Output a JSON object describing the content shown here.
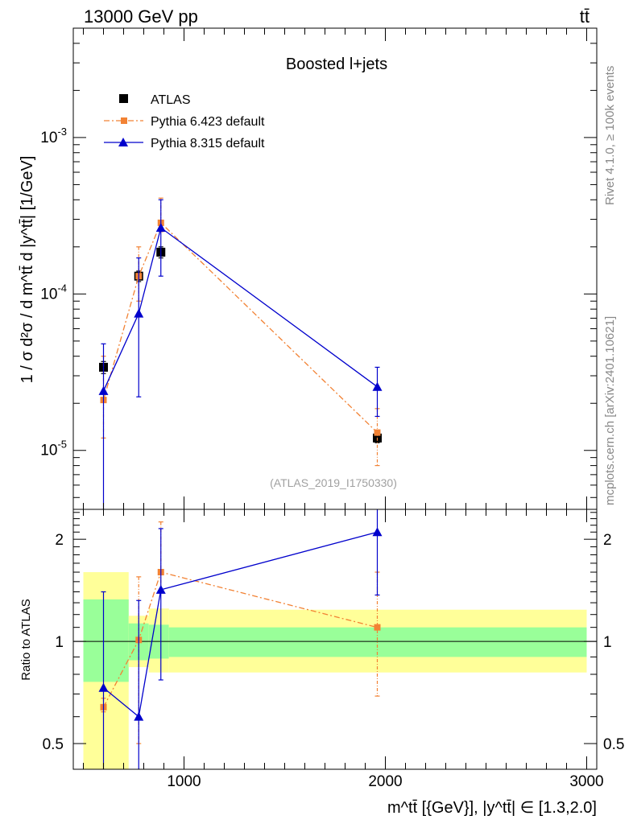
{
  "header": {
    "energy_label": "13000 GeV pp",
    "process_label": "tt̄"
  },
  "side_text": {
    "rivet": "Rivet 4.1.0, ≥ 100k events",
    "mcplots": "mcplots.cern.ch [arXiv:2401.10621]"
  },
  "colors": {
    "atlas": "#000000",
    "pythia6": "#f28234",
    "pythia8": "#0000cc",
    "band_inner": "#99ff99",
    "band_outer": "#ffff99",
    "reference_gray": "#a0a0a0"
  },
  "chart_data": [
    {
      "type": "scatter",
      "panel": "main",
      "title": "Boosted l+jets",
      "ylabel": "1 / σ d²σ / d m^tt̄ d |y^tt̄| [1/GeV]",
      "yscale": "log",
      "xlim": [
        450,
        3050
      ],
      "ylim": [
        4.2e-06,
        0.005
      ],
      "y_ticks": [
        "10^-5",
        "10^-4",
        "10^-3"
      ],
      "watermark": "(ATLAS_2019_I1750330)",
      "legend": {
        "position": "top-left",
        "entries": [
          "ATLAS",
          "Pythia 6.423 default",
          "Pythia 8.315 default"
        ]
      },
      "series": [
        {
          "name": "ATLAS",
          "marker": "square",
          "x": [
            600,
            775,
            885,
            1960
          ],
          "y": [
            3.4e-05,
            0.00013,
            0.000185,
            1.2e-05
          ],
          "yerr_low": [
            3.1e-05,
            0.00012,
            0.00017,
            1.12e-05
          ],
          "yerr_high": [
            3.7e-05,
            0.00014,
            0.0002,
            1.28e-05
          ]
        },
        {
          "name": "Pythia 6.423 default",
          "marker": "square-small",
          "line": "dashdot",
          "x": [
            600,
            775,
            885,
            1960
          ],
          "y": [
            2.1e-05,
            0.00013,
            0.000285,
            1.3e-05
          ],
          "yerr_low": [
            1.2e-05,
            9e-05,
            0.00025,
            8e-06
          ],
          "yerr_high": [
            4e-05,
            0.0002,
            0.00041,
            1.85e-05
          ]
        },
        {
          "name": "Pythia 8.315 default",
          "marker": "triangle",
          "line": "solid",
          "x": [
            600,
            775,
            885,
            1960
          ],
          "y": [
            2.4e-05,
            7.5e-05,
            0.000265,
            2.55e-05
          ],
          "yerr_low": [
            1e-06,
            2.2e-05,
            0.00013,
            1.65e-05
          ],
          "yerr_high": [
            4.8e-05,
            0.00017,
            0.0004,
            3.4e-05
          ]
        }
      ]
    },
    {
      "type": "scatter",
      "panel": "ratio",
      "ylabel": "Ratio to ATLAS",
      "yscale": "log",
      "xlim": [
        450,
        3050
      ],
      "ylim": [
        0.42,
        2.45
      ],
      "y_tick_labels": [
        "0.5",
        "1",
        "2"
      ],
      "y_tick_values": [
        0.5,
        1,
        2
      ],
      "x_tick_labels": [
        "1000",
        "2000",
        "3000"
      ],
      "x_tick_values": [
        1000,
        2000,
        3000
      ],
      "xlabel": "m^tt̄ [{GeV}], |y^tt̄| ∈ [1.3,2.0]",
      "bands": [
        {
          "x_low": 500,
          "x_high": 725,
          "inner": [
            0.76,
            1.33
          ],
          "outer": [
            0.41,
            1.6
          ]
        },
        {
          "x_low": 725,
          "x_high": 825,
          "inner": [
            0.88,
            1.13
          ],
          "outer": [
            0.84,
            1.19
          ]
        },
        {
          "x_low": 825,
          "x_high": 925,
          "inner": [
            0.89,
            1.12
          ],
          "outer": [
            0.81,
            1.25
          ]
        },
        {
          "x_low": 925,
          "x_high": 3000,
          "inner": [
            0.9,
            1.1
          ],
          "outer": [
            0.81,
            1.24
          ]
        }
      ],
      "series": [
        {
          "name": "Pythia 6.423 default",
          "x": [
            600,
            775,
            885,
            1960
          ],
          "y": [
            0.64,
            1.01,
            1.6,
            1.1
          ],
          "yerr_low": [
            0.62,
            0.5,
            1.4,
            0.69
          ],
          "yerr_high": [
            0.68,
            1.55,
            2.25,
            1.6
          ]
        },
        {
          "name": "Pythia 8.315 default",
          "x": [
            600,
            775,
            885,
            1960
          ],
          "y": [
            0.73,
            0.6,
            1.42,
            2.1
          ],
          "yerr_low": [
            0.4,
            0.4,
            0.77,
            1.37
          ],
          "yerr_high": [
            1.4,
            1.32,
            2.15,
            2.65
          ]
        }
      ]
    }
  ]
}
